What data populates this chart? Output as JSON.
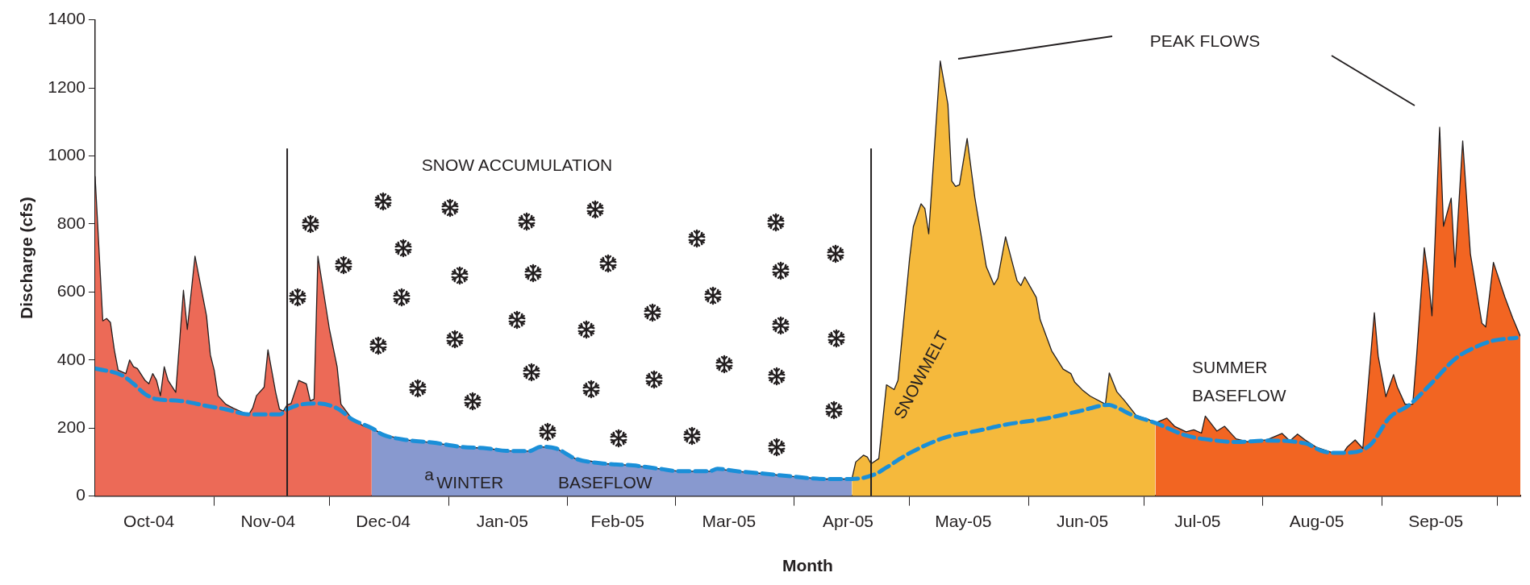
{
  "chart_data": {
    "type": "area",
    "xlabel": "Month",
    "ylabel": "Discharge (cfs)",
    "xlim": [
      "2004-10-01",
      "2005-10-07"
    ],
    "ylim": [
      0,
      1400
    ],
    "yticks": [
      0,
      200,
      400,
      600,
      800,
      1000,
      1200,
      1400
    ],
    "xticks": [
      {
        "value": "2004-10-15",
        "label": "Oct-04"
      },
      {
        "value": "2004-11-01",
        "label": null
      },
      {
        "value": "2004-11-15",
        "label": "Nov-04"
      },
      {
        "value": "2004-12-01",
        "label": null
      },
      {
        "value": "2004-12-15",
        "label": "Dec-04"
      },
      {
        "value": "2005-01-01",
        "label": null
      },
      {
        "value": "2005-01-15",
        "label": "Jan-05"
      },
      {
        "value": "2005-02-01",
        "label": null
      },
      {
        "value": "2005-02-14",
        "label": "Feb-05"
      },
      {
        "value": "2005-03-01",
        "label": null
      },
      {
        "value": "2005-03-15",
        "label": "Mar-05"
      },
      {
        "value": "2005-04-01",
        "label": null
      },
      {
        "value": "2005-04-15",
        "label": "Apr-05"
      },
      {
        "value": "2005-05-01",
        "label": null
      },
      {
        "value": "2005-05-15",
        "label": "May-05"
      },
      {
        "value": "2005-06-01",
        "label": null
      },
      {
        "value": "2005-06-15",
        "label": "Jun-05"
      },
      {
        "value": "2005-07-01",
        "label": null
      },
      {
        "value": "2005-07-15",
        "label": "Jul-05"
      },
      {
        "value": "2005-08-01",
        "label": null
      },
      {
        "value": "2005-08-15",
        "label": "Aug-05"
      },
      {
        "value": "2005-09-01",
        "label": null
      },
      {
        "value": "2005-09-15",
        "label": "Sep-05"
      },
      {
        "value": "2005-10-01",
        "label": null
      }
    ],
    "grid": false,
    "marker": "none",
    "series": [
      {
        "color": "#ec6a57",
        "x": [
          "2004-10-01",
          "2004-10-03",
          "2004-10-04",
          "2004-10-05",
          "2004-10-06",
          "2004-10-07",
          "2004-10-09",
          "2004-10-10",
          "2004-10-11",
          "2004-10-12",
          "2004-10-14",
          "2004-10-15",
          "2004-10-16",
          "2004-10-17",
          "2004-10-18",
          "2004-10-19",
          "2004-10-20",
          "2004-10-22",
          "2004-10-24",
          "2004-10-25",
          "2004-10-27",
          "2004-10-30",
          "2004-10-31",
          "2004-11-01",
          "2004-11-02",
          "2004-11-04",
          "2004-11-06",
          "2004-11-08",
          "2004-11-10",
          "2004-11-11",
          "2004-11-12",
          "2004-11-14",
          "2004-11-15",
          "2004-11-17",
          "2004-11-18",
          "2004-11-19",
          "2004-11-20",
          "2004-11-21",
          "2004-11-23",
          "2004-11-25",
          "2004-11-26",
          "2004-11-27",
          "2004-11-28",
          "2004-12-01",
          "2004-12-03",
          "2004-12-04",
          "2004-12-07",
          "2004-12-10",
          "2004-12-12"
        ],
        "values": [
          940,
          515,
          522,
          510,
          430,
          370,
          360,
          400,
          380,
          375,
          340,
          330,
          360,
          340,
          295,
          380,
          340,
          305,
          605,
          490,
          705,
          530,
          415,
          370,
          295,
          270,
          258,
          248,
          240,
          258,
          295,
          320,
          430,
          305,
          255,
          250,
          268,
          272,
          340,
          330,
          280,
          285,
          705,
          490,
          380,
          270,
          225,
          205,
          200
        ]
      },
      {
        "color": "#8899cf",
        "x": [
          "2004-12-12",
          "2004-12-15",
          "2004-12-21",
          "2004-12-28",
          "2005-01-04",
          "2005-01-11",
          "2005-01-16",
          "2005-01-22",
          "2005-01-25",
          "2005-01-29",
          "2005-02-03",
          "2005-02-11",
          "2005-02-18",
          "2005-02-25",
          "2005-03-02",
          "2005-03-10",
          "2005-03-12",
          "2005-03-17",
          "2005-03-24",
          "2005-03-31",
          "2005-04-09",
          "2005-04-16"
        ],
        "values": [
          200,
          180,
          165,
          157,
          145,
          140,
          133,
          132,
          145,
          140,
          110,
          95,
          90,
          80,
          73,
          73,
          80,
          73,
          66,
          58,
          50,
          50
        ]
      },
      {
        "color": "#f5b93c",
        "x": [
          "2005-04-16",
          "2005-04-17",
          "2005-04-19",
          "2005-04-20",
          "2005-04-21",
          "2005-04-23",
          "2005-04-25",
          "2005-04-27",
          "2005-04-28",
          "2005-05-01",
          "2005-05-02",
          "2005-05-04",
          "2005-05-05",
          "2005-05-06",
          "2005-05-09",
          "2005-05-11",
          "2005-05-12",
          "2005-05-13",
          "2005-05-14",
          "2005-05-16",
          "2005-05-18",
          "2005-05-21",
          "2005-05-23",
          "2005-05-24",
          "2005-05-26",
          "2005-05-29",
          "2005-05-30",
          "2005-05-31",
          "2005-06-03",
          "2005-06-04",
          "2005-06-07",
          "2005-06-10",
          "2005-06-12",
          "2005-06-13",
          "2005-06-15",
          "2005-06-17",
          "2005-06-21",
          "2005-06-22",
          "2005-06-24",
          "2005-06-26",
          "2005-06-29",
          "2005-07-02",
          "2005-07-04"
        ],
        "values": [
          50,
          100,
          120,
          115,
          95,
          110,
          327,
          313,
          340,
          696,
          792,
          859,
          845,
          771,
          1279,
          1151,
          926,
          910,
          915,
          1051,
          878,
          674,
          621,
          640,
          762,
          633,
          619,
          644,
          584,
          519,
          427,
          373,
          360,
          335,
          312,
          294,
          270,
          362,
          306,
          280,
          237,
          226,
          215
        ]
      },
      {
        "color": "#f26522",
        "x": [
          "2005-07-04",
          "2005-07-07",
          "2005-07-09",
          "2005-07-12",
          "2005-07-14",
          "2005-07-16",
          "2005-07-17",
          "2005-07-20",
          "2005-07-22",
          "2005-07-25",
          "2005-07-28",
          "2005-08-02",
          "2005-08-06",
          "2005-08-08",
          "2005-08-10",
          "2005-08-12",
          "2005-08-15",
          "2005-08-19",
          "2005-08-22",
          "2005-08-23",
          "2005-08-25",
          "2005-08-27",
          "2005-08-30",
          "2005-08-31",
          "2005-09-02",
          "2005-09-04",
          "2005-09-05",
          "2005-09-07",
          "2005-09-09",
          "2005-09-10",
          "2005-09-12",
          "2005-09-13",
          "2005-09-14",
          "2005-09-16",
          "2005-09-17",
          "2005-09-19",
          "2005-09-20",
          "2005-09-22",
          "2005-09-24",
          "2005-09-27",
          "2005-09-28",
          "2005-09-30",
          "2005-10-03",
          "2005-10-05",
          "2005-10-07"
        ],
        "values": [
          215,
          229,
          205,
          189,
          195,
          185,
          235,
          191,
          205,
          168,
          160,
          165,
          184,
          162,
          182,
          165,
          143,
          128,
          128,
          145,
          165,
          140,
          539,
          411,
          292,
          357,
          320,
          270,
          270,
          411,
          730,
          650,
          530,
          1084,
          793,
          876,
          673,
          1044,
          712,
          508,
          497,
          687,
          584,
          524,
          470
        ]
      },
      {
        "type": "line",
        "color": "#1a8fd8",
        "line_style": "dashed",
        "x": [
          "2004-10-01",
          "2004-10-08",
          "2004-10-11",
          "2004-10-14",
          "2004-10-17",
          "2004-10-23",
          "2004-10-30",
          "2004-11-04",
          "2004-11-10",
          "2004-11-18",
          "2004-11-20",
          "2004-11-24",
          "2004-11-28",
          "2004-12-03",
          "2004-12-07",
          "2004-12-12",
          "2004-12-15",
          "2004-12-21",
          "2004-12-28",
          "2005-01-04",
          "2005-01-11",
          "2005-01-16",
          "2005-01-22",
          "2005-01-25",
          "2005-01-29",
          "2005-02-03",
          "2005-02-11",
          "2005-02-18",
          "2005-02-25",
          "2005-03-02",
          "2005-03-10",
          "2005-03-12",
          "2005-03-17",
          "2005-03-24",
          "2005-03-31",
          "2005-04-09",
          "2005-04-16",
          "2005-04-22",
          "2005-04-25",
          "2005-05-01",
          "2005-05-10",
          "2005-05-20",
          "2005-05-26",
          "2005-06-05",
          "2005-06-14",
          "2005-06-22",
          "2005-06-24",
          "2005-06-28",
          "2005-07-04",
          "2005-07-12",
          "2005-07-19",
          "2005-07-25",
          "2005-08-02",
          "2005-08-12",
          "2005-08-16",
          "2005-08-19",
          "2005-08-24",
          "2005-08-29",
          "2005-09-03",
          "2005-09-08",
          "2005-09-14",
          "2005-09-20",
          "2005-09-25",
          "2005-09-30",
          "2005-10-06"
        ],
        "values": [
          375,
          355,
          330,
          300,
          285,
          280,
          265,
          255,
          240,
          240,
          255,
          270,
          272,
          258,
          225,
          200,
          180,
          165,
          157,
          145,
          140,
          133,
          132,
          145,
          140,
          110,
          95,
          90,
          80,
          73,
          73,
          80,
          73,
          66,
          58,
          50,
          50,
          64,
          84,
          126,
          171,
          195,
          210,
          227,
          249,
          268,
          260,
          238,
          215,
          178,
          164,
          159,
          163,
          155,
          134,
          127,
          128,
          151,
          231,
          267,
          333,
          403,
          436,
          457,
          465
        ]
      }
    ],
    "ref_lines": [
      {
        "axis": "x",
        "value": "2004-11-20"
      },
      {
        "axis": "x",
        "value": "2005-04-21"
      }
    ],
    "annotations": [
      "SNOW ACCUMULATION",
      "PEAK FLOWS",
      "SNOWMELT",
      "SUMMER BASEFLOW",
      "a",
      "WINTER BASEFLOW"
    ]
  }
}
